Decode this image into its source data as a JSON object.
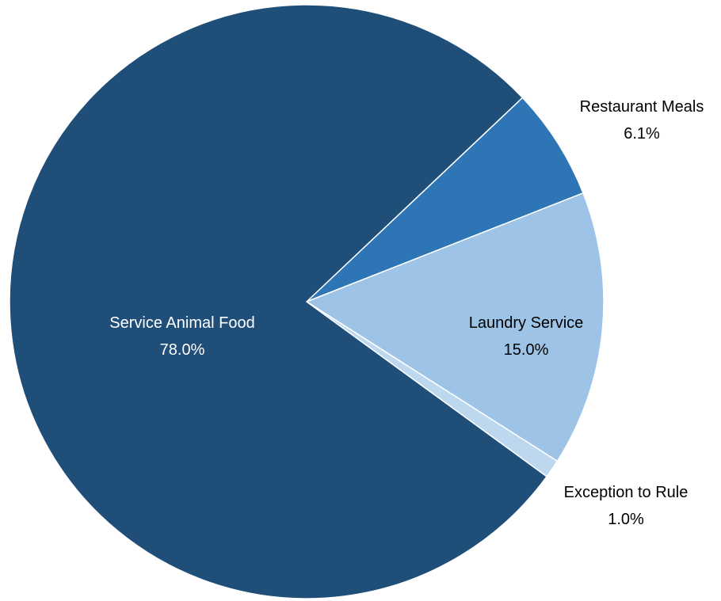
{
  "chart_data": {
    "type": "pie",
    "categories": [
      "Restaurant Meals",
      "Laundry Service",
      "Exception to Rule",
      "Service Animal Food"
    ],
    "values": [
      6.1,
      15.0,
      1.0,
      78.0
    ],
    "value_labels": [
      "6.1%",
      "15.0%",
      "1.0%",
      "78.0%"
    ],
    "colors": [
      "#2E75B6",
      "#9DC3E6",
      "#BDD7EE",
      "#1F4E79"
    ],
    "label_colors": [
      "#000000",
      "#000000",
      "#000000",
      "#ffffff"
    ],
    "start_angle_deg": 43.4,
    "direction": "clockwise",
    "legend": "none"
  }
}
